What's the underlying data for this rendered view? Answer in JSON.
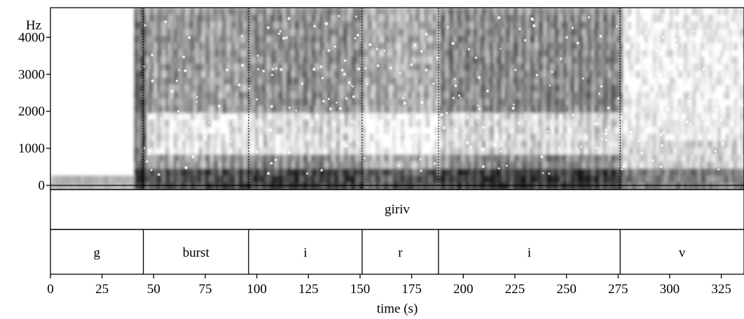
{
  "chart_data": {
    "type": "heatmap",
    "title": "",
    "xlabel": "time (s)",
    "ylabel": "Hz",
    "xlim": [
      0,
      336
    ],
    "ylim": [
      0,
      4800
    ],
    "x_ticks": [
      0,
      25,
      50,
      75,
      100,
      125,
      150,
      175,
      200,
      225,
      250,
      275,
      300,
      325
    ],
    "y_ticks": [
      0,
      1000,
      2000,
      3000,
      4000
    ],
    "boundaries": [
      45,
      96,
      151,
      188,
      276
    ],
    "word_tier": {
      "label": "giriv"
    },
    "segments": [
      {
        "label": "g",
        "start": 0,
        "end": 45
      },
      {
        "label": "burst",
        "start": 45,
        "end": 96
      },
      {
        "label": "i",
        "start": 96,
        "end": 151
      },
      {
        "label": "r",
        "start": 151,
        "end": 188
      },
      {
        "label": "i",
        "start": 188,
        "end": 276
      },
      {
        "label": "v",
        "start": 276,
        "end": 336
      }
    ]
  }
}
